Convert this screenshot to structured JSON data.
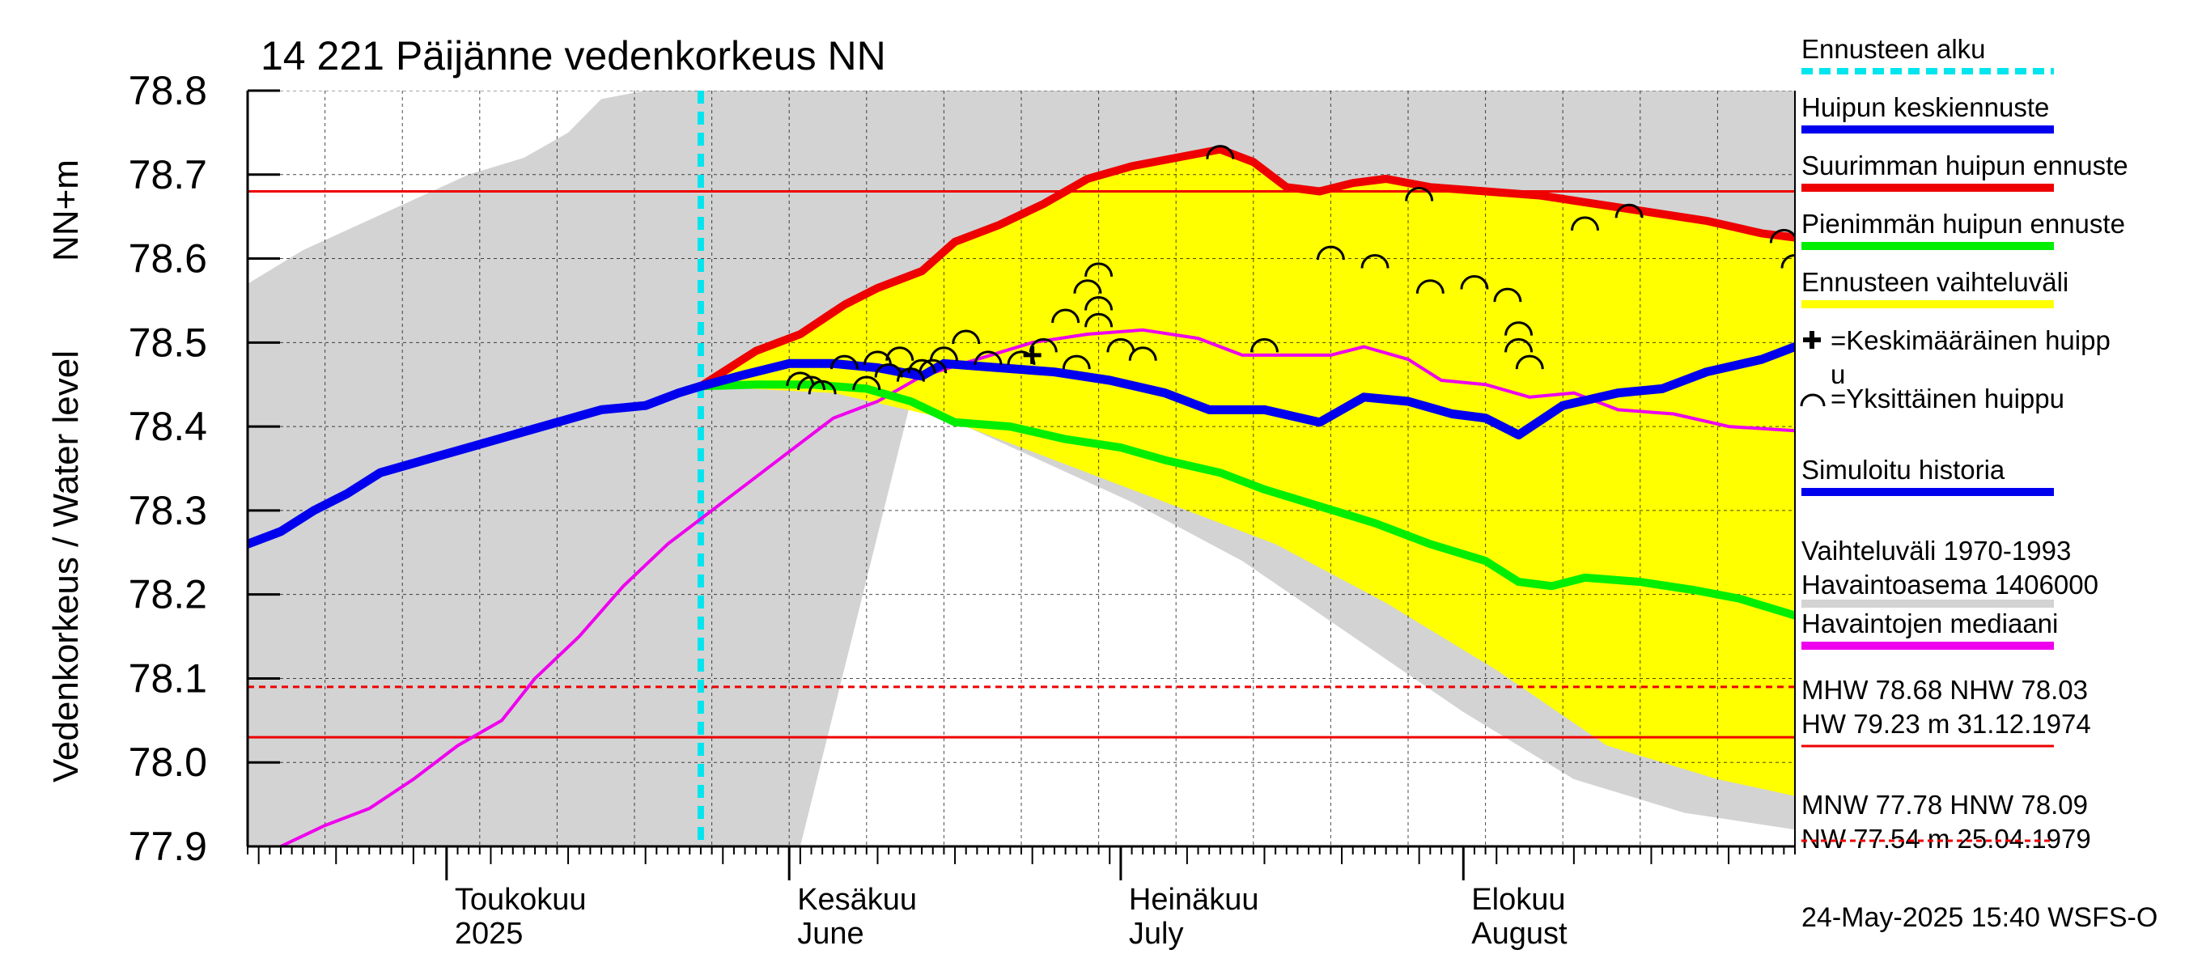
{
  "chart_data": {
    "type": "line",
    "title": "14 221 Päijänne vedenkorkeus NN",
    "ylabel_line1": "NN+m",
    "ylabel_line2": "Vedenkorkeus / Water level",
    "ylim": [
      77.9,
      78.8
    ],
    "yticks": [
      "78.8",
      "78.7",
      "78.6",
      "78.5",
      "78.4",
      "78.3",
      "78.2",
      "78.1",
      "78.0",
      "77.9"
    ],
    "xlim": [
      "2025-04-13",
      "2025-08-31"
    ],
    "xticks": [
      {
        "date": "2025-05-01",
        "line1": "Toukokuu",
        "line2": "2025"
      },
      {
        "date": "2025-06-01",
        "line1": "Kesäkuu",
        "line2": "June"
      },
      {
        "date": "2025-07-01",
        "line1": "Heinäkuu",
        "line2": "July"
      },
      {
        "date": "2025-08-01",
        "line1": "Elokuu",
        "line2": "August"
      }
    ],
    "forecast_start": "2025-05-24",
    "reference_levels": {
      "MHW": 78.68,
      "NHW": 78.03,
      "HW": 79.23,
      "HW_date": "31.12.1974",
      "MNW": 77.78,
      "HNW": 78.09,
      "NW": 77.54,
      "NW_date": "25.04.1979"
    },
    "series": [
      {
        "name": "Simuloitu historia",
        "color": "#0000ee",
        "points": [
          [
            "2025-04-13",
            78.26
          ],
          [
            "2025-04-16",
            78.275
          ],
          [
            "2025-04-19",
            78.3
          ],
          [
            "2025-04-22",
            78.32
          ],
          [
            "2025-04-25",
            78.345
          ],
          [
            "2025-04-29",
            78.36
          ],
          [
            "2025-05-03",
            78.375
          ],
          [
            "2025-05-07",
            78.39
          ],
          [
            "2025-05-11",
            78.405
          ],
          [
            "2025-05-15",
            78.42
          ],
          [
            "2025-05-19",
            78.425
          ],
          [
            "2025-05-22",
            78.44
          ],
          [
            "2025-05-24",
            78.448
          ]
        ]
      },
      {
        "name": "Huipun keskiennuste",
        "color": "#0000ee",
        "points": [
          [
            "2025-05-24",
            78.448
          ],
          [
            "2025-05-28",
            78.462
          ],
          [
            "2025-06-01",
            78.475
          ],
          [
            "2025-06-05",
            78.475
          ],
          [
            "2025-06-09",
            78.47
          ],
          [
            "2025-06-13",
            78.46
          ],
          [
            "2025-06-15",
            78.475
          ],
          [
            "2025-06-20",
            78.47
          ],
          [
            "2025-06-25",
            78.465
          ],
          [
            "2025-06-30",
            78.455
          ],
          [
            "2025-07-05",
            78.44
          ],
          [
            "2025-07-09",
            78.42
          ],
          [
            "2025-07-14",
            78.42
          ],
          [
            "2025-07-19",
            78.405
          ],
          [
            "2025-07-23",
            78.435
          ],
          [
            "2025-07-27",
            78.43
          ],
          [
            "2025-07-31",
            78.415
          ],
          [
            "2025-08-03",
            78.41
          ],
          [
            "2025-08-06",
            78.39
          ],
          [
            "2025-08-10",
            78.425
          ],
          [
            "2025-08-15",
            78.44
          ],
          [
            "2025-08-19",
            78.445
          ],
          [
            "2025-08-23",
            78.465
          ],
          [
            "2025-08-28",
            78.48
          ],
          [
            "2025-08-31",
            78.495
          ]
        ]
      },
      {
        "name": "Suurimman huipun ennuste",
        "color": "#ee0000",
        "points": [
          [
            "2025-05-24",
            78.448
          ],
          [
            "2025-05-29",
            78.49
          ],
          [
            "2025-06-02",
            78.51
          ],
          [
            "2025-06-06",
            78.545
          ],
          [
            "2025-06-09",
            78.565
          ],
          [
            "2025-06-13",
            78.585
          ],
          [
            "2025-06-16",
            78.62
          ],
          [
            "2025-06-20",
            78.64
          ],
          [
            "2025-06-24",
            78.665
          ],
          [
            "2025-06-28",
            78.695
          ],
          [
            "2025-07-02",
            78.71
          ],
          [
            "2025-07-06",
            78.72
          ],
          [
            "2025-07-10",
            78.73
          ],
          [
            "2025-07-13",
            78.715
          ],
          [
            "2025-07-16",
            78.685
          ],
          [
            "2025-07-19",
            78.68
          ],
          [
            "2025-07-22",
            78.69
          ],
          [
            "2025-07-25",
            78.695
          ],
          [
            "2025-07-29",
            78.685
          ],
          [
            "2025-08-03",
            78.68
          ],
          [
            "2025-08-08",
            78.675
          ],
          [
            "2025-08-13",
            78.665
          ],
          [
            "2025-08-18",
            78.655
          ],
          [
            "2025-08-23",
            78.645
          ],
          [
            "2025-08-28",
            78.63
          ],
          [
            "2025-08-31",
            78.625
          ]
        ]
      },
      {
        "name": "Pienimmän huipun ennuste",
        "color": "#00ee00",
        "points": [
          [
            "2025-05-24",
            78.448
          ],
          [
            "2025-05-29",
            78.45
          ],
          [
            "2025-06-03",
            78.45
          ],
          [
            "2025-06-08",
            78.445
          ],
          [
            "2025-06-12",
            78.43
          ],
          [
            "2025-06-16",
            78.405
          ],
          [
            "2025-06-21",
            78.4
          ],
          [
            "2025-06-26",
            78.385
          ],
          [
            "2025-07-01",
            78.375
          ],
          [
            "2025-07-05",
            78.36
          ],
          [
            "2025-07-10",
            78.345
          ],
          [
            "2025-07-14",
            78.325
          ],
          [
            "2025-07-19",
            78.305
          ],
          [
            "2025-07-24",
            78.285
          ],
          [
            "2025-07-29",
            78.26
          ],
          [
            "2025-08-03",
            78.24
          ],
          [
            "2025-08-06",
            78.215
          ],
          [
            "2025-08-09",
            78.21
          ],
          [
            "2025-08-12",
            78.22
          ],
          [
            "2025-08-17",
            78.215
          ],
          [
            "2025-08-22",
            78.205
          ],
          [
            "2025-08-26",
            78.195
          ],
          [
            "2025-08-31",
            78.175
          ]
        ]
      },
      {
        "name": "Havaintojen mediaani",
        "color": "#ee00ee",
        "points": [
          [
            "2025-04-16",
            77.9
          ],
          [
            "2025-04-20",
            77.925
          ],
          [
            "2025-04-24",
            77.945
          ],
          [
            "2025-04-28",
            77.98
          ],
          [
            "2025-05-02",
            78.02
          ],
          [
            "2025-05-06",
            78.05
          ],
          [
            "2025-05-09",
            78.1
          ],
          [
            "2025-05-13",
            78.15
          ],
          [
            "2025-05-17",
            78.21
          ],
          [
            "2025-05-21",
            78.26
          ],
          [
            "2025-05-24",
            78.29
          ],
          [
            "2025-05-28",
            78.33
          ],
          [
            "2025-06-01",
            78.37
          ],
          [
            "2025-06-05",
            78.41
          ],
          [
            "2025-06-09",
            78.43
          ],
          [
            "2025-06-13",
            78.46
          ],
          [
            "2025-06-18",
            78.48
          ],
          [
            "2025-06-23",
            78.5
          ],
          [
            "2025-06-28",
            78.51
          ],
          [
            "2025-07-03",
            78.515
          ],
          [
            "2025-07-08",
            78.505
          ],
          [
            "2025-07-12",
            78.485
          ],
          [
            "2025-07-20",
            78.485
          ],
          [
            "2025-07-23",
            78.495
          ],
          [
            "2025-07-27",
            78.48
          ],
          [
            "2025-07-30",
            78.455
          ],
          [
            "2025-08-03",
            78.45
          ],
          [
            "2025-08-07",
            78.435
          ],
          [
            "2025-08-11",
            78.44
          ],
          [
            "2025-08-15",
            78.42
          ],
          [
            "2025-08-20",
            78.415
          ],
          [
            "2025-08-25",
            78.4
          ],
          [
            "2025-08-31",
            78.395
          ]
        ]
      }
    ],
    "forecast_band": {
      "name": "Ennusteen vaihteluväli",
      "color": "#ffff00",
      "lower": [
        [
          "2025-05-24",
          78.448
        ],
        [
          "2025-06-05",
          78.44
        ],
        [
          "2025-06-15",
          78.41
        ],
        [
          "2025-06-25",
          78.36
        ],
        [
          "2025-07-05",
          78.31
        ],
        [
          "2025-07-15",
          78.26
        ],
        [
          "2025-07-25",
          78.19
        ],
        [
          "2025-08-04",
          78.11
        ],
        [
          "2025-08-14",
          78.02
        ],
        [
          "2025-08-24",
          77.98
        ],
        [
          "2025-08-31",
          77.96
        ]
      ]
    },
    "historical_band": {
      "name": "Vaihteluväli 1970-1993 Havaintoasema 1406000",
      "color": "#d3d3d3",
      "upper": [
        [
          "2025-04-13",
          78.57
        ],
        [
          "2025-04-18",
          78.61
        ],
        [
          "2025-04-23",
          78.64
        ],
        [
          "2025-04-28",
          78.67
        ],
        [
          "2025-05-03",
          78.7
        ],
        [
          "2025-05-08",
          78.72
        ],
        [
          "2025-05-12",
          78.75
        ],
        [
          "2025-05-15",
          78.79
        ],
        [
          "2025-05-19",
          78.8
        ],
        [
          "2025-08-31",
          78.8
        ]
      ],
      "lower": [
        [
          "2025-04-13",
          77.9
        ],
        [
          "2025-06-02",
          77.9
        ],
        [
          "2025-06-12",
          78.43
        ],
        [
          "2025-06-22",
          78.37
        ],
        [
          "2025-07-02",
          78.31
        ],
        [
          "2025-07-12",
          78.24
        ],
        [
          "2025-07-22",
          78.15
        ],
        [
          "2025-08-01",
          78.06
        ],
        [
          "2025-08-11",
          77.98
        ],
        [
          "2025-08-21",
          77.94
        ],
        [
          "2025-08-31",
          77.92
        ]
      ]
    },
    "individual_peaks": [
      [
        "2025-06-02",
        78.46
      ],
      [
        "2025-06-03",
        78.455
      ],
      [
        "2025-06-04",
        78.45
      ],
      [
        "2025-06-06",
        78.48
      ],
      [
        "2025-06-08",
        78.455
      ],
      [
        "2025-06-09",
        78.485
      ],
      [
        "2025-06-10",
        78.47
      ],
      [
        "2025-06-11",
        78.49
      ],
      [
        "2025-06-12",
        78.465
      ],
      [
        "2025-06-13",
        78.475
      ],
      [
        "2025-06-14",
        78.475
      ],
      [
        "2025-06-15",
        78.49
      ],
      [
        "2025-06-17",
        78.51
      ],
      [
        "2025-06-19",
        78.485
      ],
      [
        "2025-06-22",
        78.485
      ],
      [
        "2025-06-24",
        78.5
      ],
      [
        "2025-06-26",
        78.535
      ],
      [
        "2025-06-27",
        78.48
      ],
      [
        "2025-06-28",
        78.57
      ],
      [
        "2025-06-29",
        78.59
      ],
      [
        "2025-06-29",
        78.55
      ],
      [
        "2025-06-29",
        78.53
      ],
      [
        "2025-07-01",
        78.5
      ],
      [
        "2025-07-03",
        78.49
      ],
      [
        "2025-07-10",
        78.73
      ],
      [
        "2025-07-14",
        78.5
      ],
      [
        "2025-07-20",
        78.61
      ],
      [
        "2025-07-24",
        78.6
      ],
      [
        "2025-07-28",
        78.68
      ],
      [
        "2025-07-29",
        78.57
      ],
      [
        "2025-08-02",
        78.575
      ],
      [
        "2025-08-05",
        78.56
      ],
      [
        "2025-08-06",
        78.52
      ],
      [
        "2025-08-06",
        78.5
      ],
      [
        "2025-08-07",
        78.48
      ],
      [
        "2025-08-12",
        78.645
      ],
      [
        "2025-08-16",
        78.66
      ],
      [
        "2025-08-30",
        78.63
      ],
      [
        "2025-08-31",
        78.6
      ]
    ],
    "legend": {
      "position": "right",
      "items": [
        {
          "label": "Ennusteen alku",
          "color": "#00e5ee",
          "style": "dashed"
        },
        {
          "label": "Huipun keskiennuste",
          "color": "#0000ee",
          "style": "solid"
        },
        {
          "label": "Suurimman huipun ennuste",
          "color": "#ee0000",
          "style": "solid"
        },
        {
          "label": "Pienimmän huipun ennuste",
          "color": "#00ee00",
          "style": "solid"
        },
        {
          "label": "Ennusteen vaihteluväli",
          "color": "#ffff00",
          "style": "solid"
        },
        {
          "label": "=Keskimääräinen huipp",
          "label2": "u",
          "marker": "plus"
        },
        {
          "label": "=Yksittäinen huippu",
          "marker": "arc"
        },
        {
          "label": "Simuloitu historia",
          "color": "#0000ee",
          "style": "solid"
        },
        {
          "label": "Vaihteluväli 1970-1993",
          "label2": " Havaintoasema 1406000",
          "color": "#d3d3d3",
          "style": "solid"
        },
        {
          "label": "Havaintojen mediaani",
          "color": "#ee00ee",
          "style": "solid"
        },
        {
          "label": "MHW  78.68 NHW  78.03",
          "label2": "HW  79.23 m 31.12.1974",
          "color": "#ee0000",
          "style": "solid"
        },
        {
          "label": "MNW  77.78 HNW  78.09",
          "label2": "NW  77.54 m 25.04.1979",
          "color": "#ee0000",
          "style": "dashed"
        }
      ]
    },
    "mean_peak": [
      "2025-06-23",
      78.485
    ],
    "footer": "24-May-2025 15:40 WSFS-O"
  }
}
